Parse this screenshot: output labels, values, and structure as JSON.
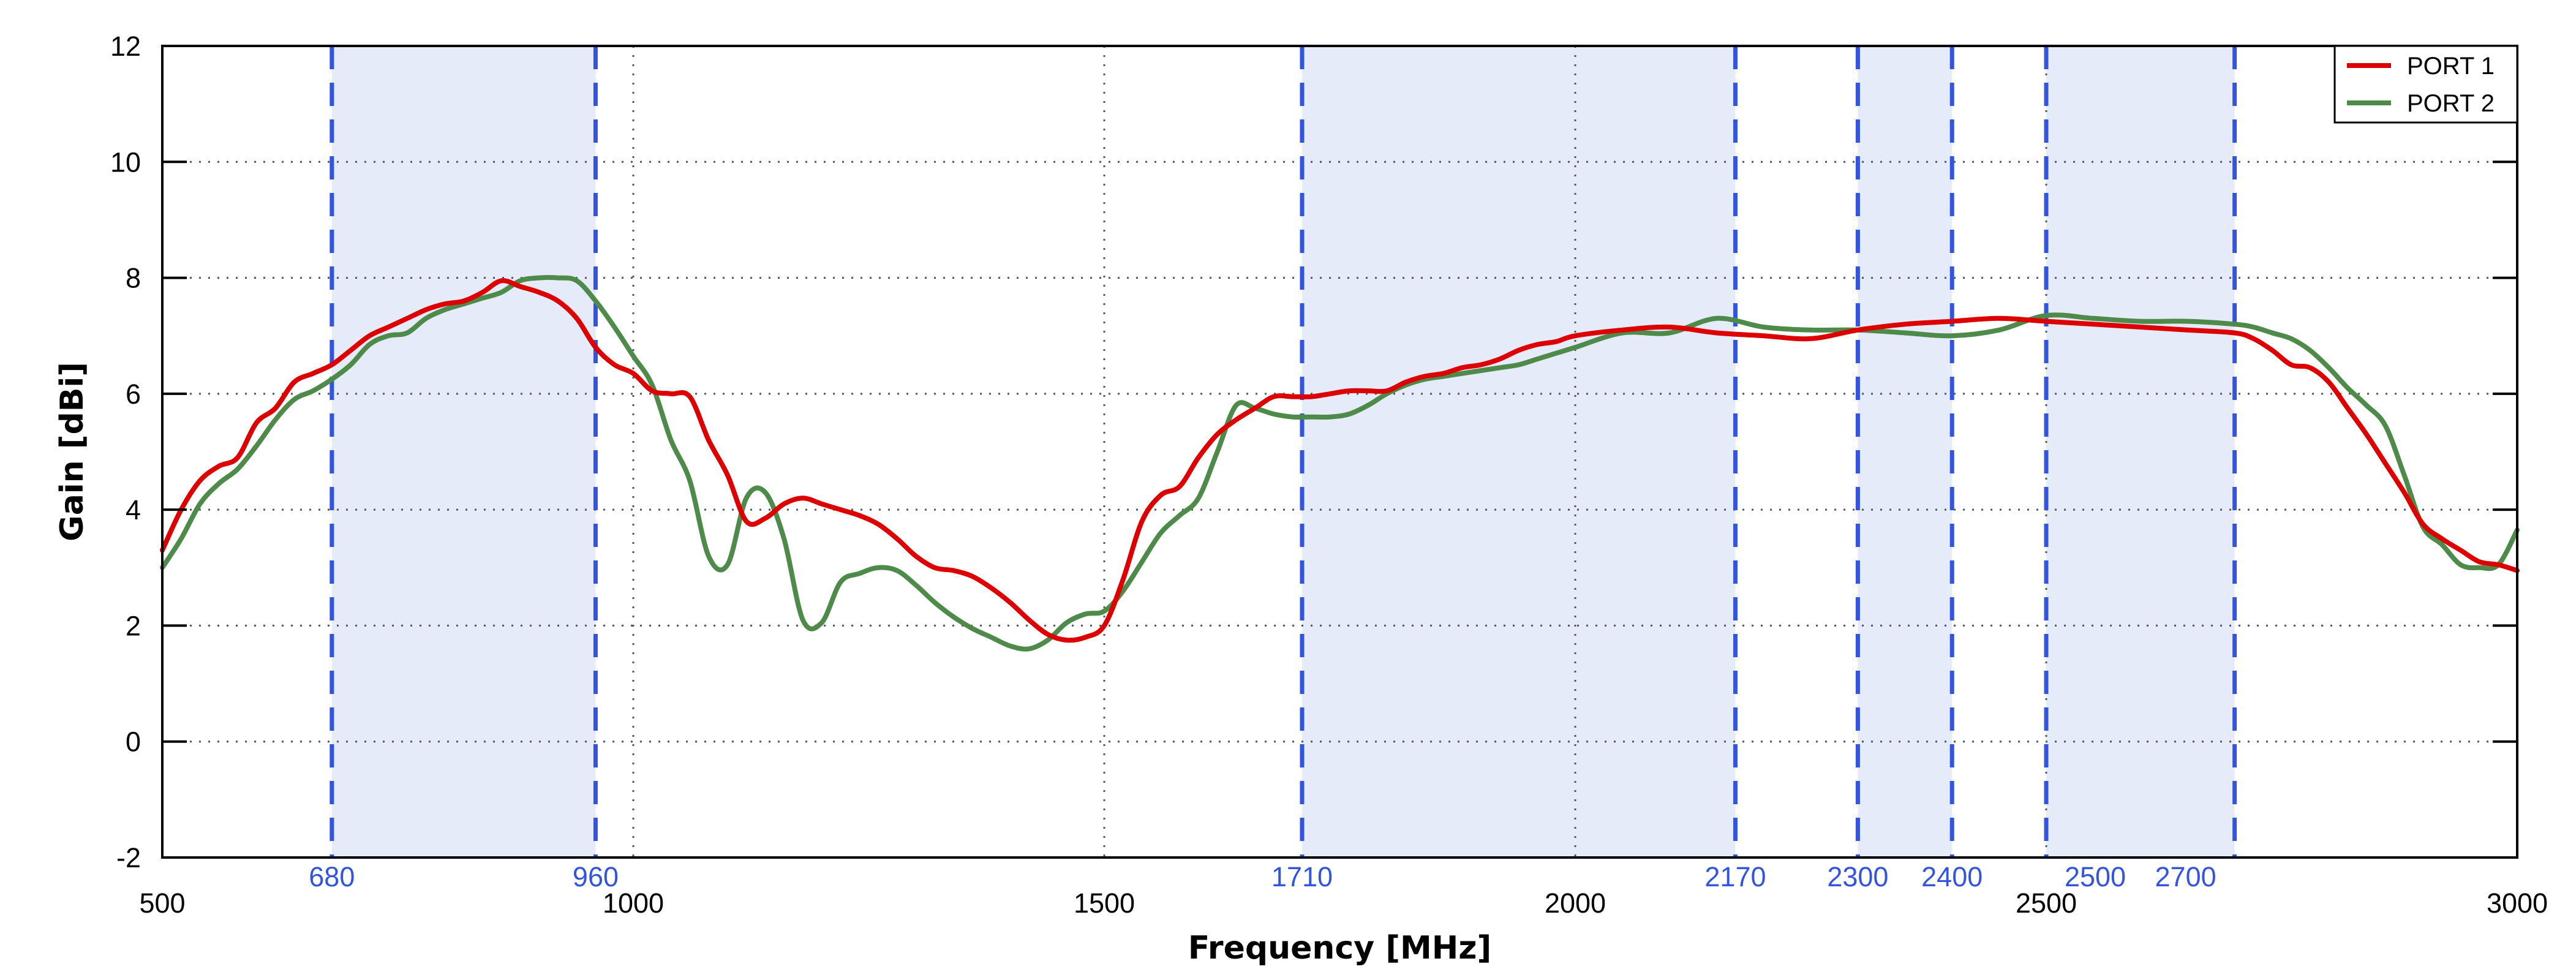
{
  "chart_data": {
    "type": "line",
    "title": "",
    "xlabel": "Frequency [MHz]",
    "ylabel": "Gain [dBi]",
    "xlim": [
      500,
      3000
    ],
    "ylim": [
      -2,
      12
    ],
    "x_ticks": [
      "500",
      "1000",
      "1500",
      "2000",
      "2500",
      "3000"
    ],
    "y_ticks": [
      "-2",
      "0",
      "2",
      "4",
      "6",
      "8",
      "10",
      "12"
    ],
    "grid": true,
    "legend_position": "top-right",
    "bands": [
      [
        680,
        960
      ],
      [
        1710,
        2170
      ],
      [
        2300,
        2400
      ],
      [
        2500,
        2700
      ]
    ],
    "band_markers": [
      "680",
      "960",
      "1710",
      "2170",
      "2300",
      "2400",
      "2500",
      "2700"
    ],
    "band_label_values": [
      680,
      960,
      1710,
      2170,
      2300,
      2400,
      2500,
      2700
    ],
    "band_color": "#e5ebf8",
    "band_line_color": "#3355dd",
    "series": [
      {
        "name": "PORT 1",
        "color": "#dd0000",
        "x": [
          500,
          520,
          540,
          560,
          580,
          600,
          620,
          640,
          660,
          680,
          700,
          720,
          740,
          760,
          780,
          800,
          820,
          840,
          860,
          880,
          900,
          920,
          940,
          960,
          980,
          1000,
          1020,
          1040,
          1060,
          1080,
          1100,
          1120,
          1140,
          1160,
          1180,
          1200,
          1220,
          1240,
          1260,
          1280,
          1300,
          1320,
          1340,
          1360,
          1380,
          1400,
          1420,
          1440,
          1460,
          1480,
          1500,
          1520,
          1540,
          1560,
          1580,
          1600,
          1620,
          1640,
          1660,
          1680,
          1700,
          1720,
          1740,
          1760,
          1780,
          1800,
          1820,
          1840,
          1860,
          1880,
          1900,
          1920,
          1940,
          1960,
          1980,
          2000,
          2050,
          2100,
          2150,
          2200,
          2250,
          2300,
          2350,
          2400,
          2450,
          2500,
          2550,
          2600,
          2650,
          2700,
          2720,
          2740,
          2760,
          2780,
          2800,
          2820,
          2840,
          2860,
          2880,
          2900,
          2920,
          2940,
          2960,
          2980,
          3000
        ],
        "y": [
          3.3,
          4.0,
          4.5,
          4.75,
          4.9,
          5.5,
          5.75,
          6.2,
          6.35,
          6.5,
          6.75,
          7.0,
          7.15,
          7.3,
          7.45,
          7.55,
          7.6,
          7.75,
          7.95,
          7.85,
          7.75,
          7.6,
          7.3,
          6.8,
          6.5,
          6.35,
          6.05,
          6.0,
          5.95,
          5.2,
          4.6,
          3.8,
          3.85,
          4.1,
          4.2,
          4.1,
          4.0,
          3.9,
          3.75,
          3.5,
          3.2,
          3.0,
          2.95,
          2.85,
          2.65,
          2.4,
          2.1,
          1.85,
          1.75,
          1.8,
          2.0,
          2.8,
          3.8,
          4.25,
          4.4,
          4.9,
          5.3,
          5.55,
          5.75,
          5.95,
          5.95,
          5.95,
          6.0,
          6.05,
          6.05,
          6.05,
          6.2,
          6.3,
          6.35,
          6.45,
          6.5,
          6.6,
          6.75,
          6.85,
          6.9,
          7.0,
          7.1,
          7.15,
          7.05,
          7.0,
          6.95,
          7.1,
          7.2,
          7.25,
          7.3,
          7.25,
          7.2,
          7.15,
          7.1,
          7.05,
          6.95,
          6.75,
          6.5,
          6.45,
          6.2,
          5.75,
          5.3,
          4.8,
          4.3,
          3.75,
          3.5,
          3.3,
          3.1,
          3.05,
          2.95
        ],
        "x_note": "values sampled from the curve"
      },
      {
        "name": "PORT 2",
        "color": "#4e8b4a",
        "x": [
          500,
          520,
          540,
          560,
          580,
          600,
          620,
          640,
          660,
          680,
          700,
          720,
          740,
          760,
          780,
          800,
          820,
          840,
          860,
          880,
          900,
          920,
          940,
          960,
          980,
          1000,
          1020,
          1040,
          1060,
          1080,
          1100,
          1120,
          1140,
          1160,
          1180,
          1200,
          1220,
          1240,
          1260,
          1280,
          1300,
          1320,
          1340,
          1360,
          1380,
          1400,
          1420,
          1440,
          1460,
          1480,
          1500,
          1520,
          1540,
          1560,
          1580,
          1600,
          1620,
          1640,
          1660,
          1680,
          1700,
          1720,
          1740,
          1760,
          1780,
          1800,
          1820,
          1840,
          1860,
          1880,
          1900,
          1920,
          1940,
          1960,
          1980,
          2000,
          2050,
          2100,
          2150,
          2200,
          2250,
          2300,
          2350,
          2400,
          2450,
          2500,
          2550,
          2600,
          2650,
          2700,
          2720,
          2740,
          2760,
          2780,
          2800,
          2820,
          2840,
          2860,
          2880,
          2900,
          2920,
          2940,
          2960,
          2980,
          3000
        ],
        "y": [
          3.0,
          3.5,
          4.1,
          4.45,
          4.7,
          5.1,
          5.55,
          5.9,
          6.05,
          6.25,
          6.5,
          6.85,
          7.0,
          7.05,
          7.3,
          7.45,
          7.55,
          7.65,
          7.75,
          7.95,
          8.0,
          8.0,
          7.95,
          7.6,
          7.15,
          6.65,
          6.15,
          5.2,
          4.5,
          3.2,
          3.05,
          4.2,
          4.3,
          3.5,
          2.1,
          2.05,
          2.75,
          2.9,
          3.0,
          2.95,
          2.7,
          2.4,
          2.15,
          1.95,
          1.8,
          1.65,
          1.6,
          1.75,
          2.05,
          2.2,
          2.25,
          2.6,
          3.1,
          3.6,
          3.9,
          4.2,
          5.0,
          5.8,
          5.75,
          5.65,
          5.6,
          5.6,
          5.6,
          5.65,
          5.8,
          6.0,
          6.15,
          6.25,
          6.3,
          6.35,
          6.4,
          6.45,
          6.5,
          6.6,
          6.7,
          6.8,
          7.05,
          7.05,
          7.3,
          7.15,
          7.1,
          7.1,
          7.05,
          7.0,
          7.1,
          7.35,
          7.3,
          7.25,
          7.25,
          7.2,
          7.15,
          7.05,
          6.95,
          6.75,
          6.45,
          6.1,
          5.8,
          5.45,
          4.6,
          3.7,
          3.4,
          3.05,
          3.0,
          3.05,
          3.65
        ],
        "x_note": "values sampled from the curve"
      }
    ]
  }
}
